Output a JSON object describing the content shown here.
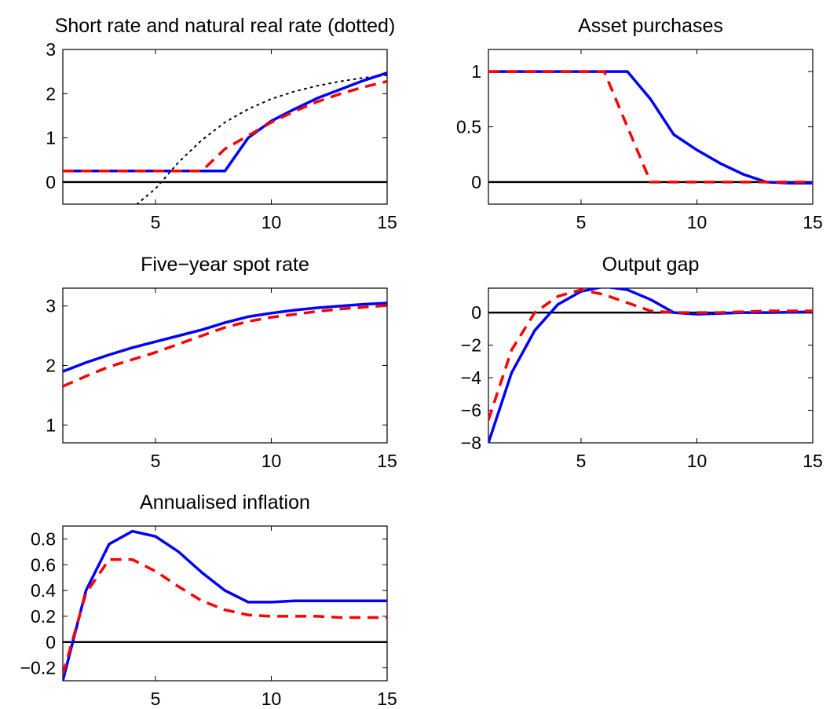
{
  "colors": {
    "line1": "#0000ff",
    "line2": "#ff0000",
    "dotted": "#000000",
    "zero_line": "#000000"
  },
  "chart_data": [
    {
      "type": "line",
      "title": "Short rate and natural real rate (dotted)",
      "xlabel": "",
      "ylabel": "",
      "xlim": [
        1,
        15
      ],
      "ylim": [
        -0.5,
        3
      ],
      "xticks": [
        5,
        10,
        15
      ],
      "yticks": [
        0,
        1,
        2,
        3
      ],
      "zero_line": true,
      "x": [
        1,
        2,
        3,
        4,
        5,
        6,
        7,
        8,
        9,
        10,
        11,
        12,
        13,
        14,
        15
      ],
      "series": [
        {
          "style": "solid",
          "color": "#0000ff",
          "values": [
            0.25,
            0.25,
            0.25,
            0.25,
            0.25,
            0.25,
            0.25,
            0.25,
            1.0,
            1.38,
            1.65,
            1.9,
            2.1,
            2.3,
            2.47
          ]
        },
        {
          "style": "dashed",
          "color": "#ff0000",
          "values": [
            0.25,
            0.25,
            0.25,
            0.25,
            0.25,
            0.25,
            0.25,
            0.75,
            1.05,
            1.35,
            1.6,
            1.82,
            2.0,
            2.15,
            2.28
          ]
        },
        {
          "style": "dotted",
          "color": "#000000",
          "x": [
            4.2,
            5,
            6,
            7,
            8,
            9,
            10,
            11,
            12,
            13,
            14,
            15
          ],
          "values": [
            -0.5,
            -0.15,
            0.45,
            0.95,
            1.35,
            1.65,
            1.88,
            2.05,
            2.18,
            2.28,
            2.36,
            2.42
          ]
        }
      ]
    },
    {
      "type": "line",
      "title": "Asset purchases",
      "xlabel": "",
      "ylabel": "",
      "xlim": [
        1,
        15
      ],
      "ylim": [
        -0.2,
        1.2
      ],
      "xticks": [
        5,
        10,
        15
      ],
      "yticks": [
        0,
        0.5,
        1
      ],
      "zero_line": true,
      "x": [
        1,
        2,
        3,
        4,
        5,
        6,
        7,
        8,
        9,
        10,
        11,
        12,
        13,
        14,
        15
      ],
      "series": [
        {
          "style": "solid",
          "color": "#0000ff",
          "values": [
            1,
            1,
            1,
            1,
            1,
            1,
            1,
            0.75,
            0.43,
            0.29,
            0.17,
            0.07,
            0.0,
            -0.01,
            -0.01
          ]
        },
        {
          "style": "dashed",
          "color": "#ff0000",
          "values": [
            1,
            1,
            1,
            1,
            1,
            1,
            0.5,
            0.0,
            0.0,
            0.0,
            0.0,
            0.0,
            0.0,
            0.0,
            0.0
          ]
        }
      ]
    },
    {
      "type": "line",
      "title": "Five−year spot rate",
      "xlabel": "",
      "ylabel": "",
      "xlim": [
        1,
        15
      ],
      "ylim": [
        0.7,
        3.3
      ],
      "xticks": [
        5,
        10,
        15
      ],
      "yticks": [
        1,
        2,
        3
      ],
      "zero_line": false,
      "x": [
        1,
        2,
        3,
        4,
        5,
        6,
        7,
        8,
        9,
        10,
        11,
        12,
        13,
        14,
        15
      ],
      "series": [
        {
          "style": "solid",
          "color": "#0000ff",
          "values": [
            1.9,
            2.05,
            2.18,
            2.3,
            2.4,
            2.5,
            2.6,
            2.72,
            2.82,
            2.88,
            2.93,
            2.97,
            3.0,
            3.03,
            3.05
          ]
        },
        {
          "style": "dashed",
          "color": "#ff0000",
          "values": [
            1.65,
            1.82,
            1.98,
            2.1,
            2.22,
            2.36,
            2.5,
            2.64,
            2.74,
            2.81,
            2.86,
            2.91,
            2.95,
            2.98,
            3.01
          ]
        }
      ]
    },
    {
      "type": "line",
      "title": "Output gap",
      "xlabel": "",
      "ylabel": "",
      "xlim": [
        1,
        15
      ],
      "ylim": [
        -8,
        1.5
      ],
      "xticks": [
        5,
        10,
        15
      ],
      "yticks": [
        -8,
        -6,
        -4,
        -2,
        0
      ],
      "zero_line": true,
      "x": [
        1,
        2,
        3,
        4,
        5,
        6,
        7,
        8,
        9,
        10,
        11,
        12,
        13,
        14,
        15
      ],
      "series": [
        {
          "style": "solid",
          "color": "#0000ff",
          "values": [
            -8,
            -3.7,
            -1.1,
            0.5,
            1.3,
            1.6,
            1.4,
            0.8,
            0.0,
            -0.1,
            -0.05,
            0.0,
            0.0,
            0.02,
            0.05
          ]
        },
        {
          "style": "dashed",
          "color": "#ff0000",
          "values": [
            -6.6,
            -2.3,
            0.0,
            1.0,
            1.4,
            1.1,
            0.6,
            0.1,
            0.0,
            0.0,
            0.0,
            0.05,
            0.1,
            0.1,
            0.1
          ]
        }
      ]
    },
    {
      "type": "line",
      "title": "Annualised inflation",
      "xlabel": "",
      "ylabel": "",
      "xlim": [
        1,
        15
      ],
      "ylim": [
        -0.3,
        0.9
      ],
      "xticks": [
        5,
        10,
        15
      ],
      "yticks": [
        -0.2,
        0,
        0.2,
        0.4,
        0.6,
        0.8
      ],
      "zero_line": true,
      "x": [
        1,
        2,
        3,
        4,
        5,
        6,
        7,
        8,
        9,
        10,
        11,
        12,
        13,
        14,
        15
      ],
      "series": [
        {
          "style": "solid",
          "color": "#0000ff",
          "values": [
            -0.3,
            0.4,
            0.76,
            0.86,
            0.82,
            0.7,
            0.54,
            0.4,
            0.31,
            0.31,
            0.32,
            0.32,
            0.32,
            0.32,
            0.32
          ]
        },
        {
          "style": "dashed",
          "color": "#ff0000",
          "values": [
            -0.25,
            0.38,
            0.64,
            0.64,
            0.55,
            0.43,
            0.32,
            0.25,
            0.21,
            0.2,
            0.2,
            0.2,
            0.19,
            0.19,
            0.19
          ]
        }
      ]
    }
  ]
}
